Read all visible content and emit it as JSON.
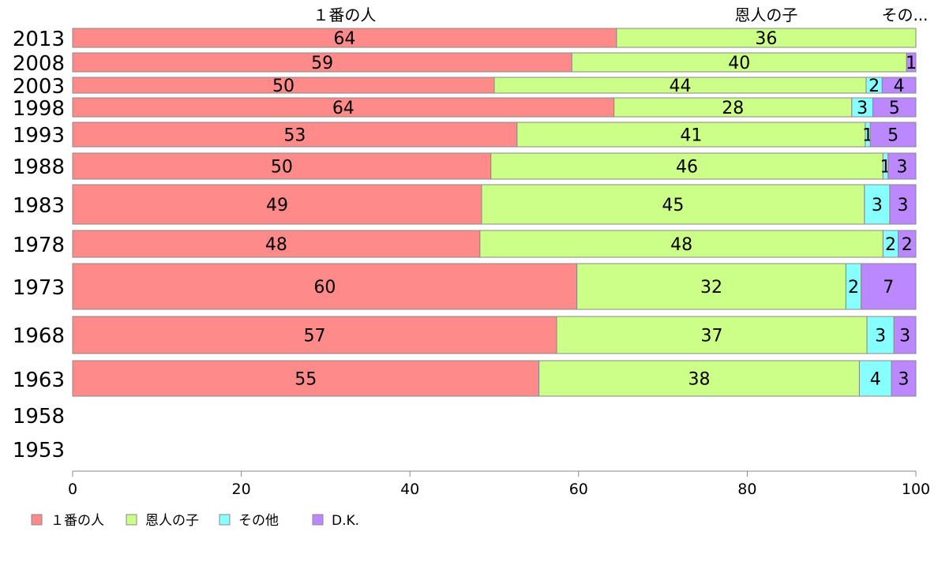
{
  "chart_data": {
    "type": "bar",
    "orientation": "horizontal",
    "stacked": true,
    "categories": [
      "2013",
      "2008",
      "2003",
      "1998",
      "1993",
      "1988",
      "1983",
      "1978",
      "1973",
      "1968",
      "1963",
      "1958",
      "1953"
    ],
    "series": [
      {
        "name": "１番の人",
        "color": "#ff8a8a",
        "values": [
          64.5,
          59.2,
          50.0,
          64.2,
          52.7,
          49.6,
          48.5,
          48.3,
          59.8,
          57.4,
          55.3,
          null,
          null
        ],
        "labels": [
          "64",
          "59",
          "50",
          "64",
          "53",
          "50",
          "49",
          "48",
          "60",
          "57",
          "55",
          "",
          ""
        ]
      },
      {
        "name": "恩人の子",
        "color": "#ccff88",
        "values": [
          35.5,
          39.7,
          44.1,
          28.2,
          41.3,
          46.5,
          45.4,
          47.8,
          31.9,
          36.8,
          38.0,
          null,
          null
        ],
        "labels": [
          "36",
          "40",
          "44",
          "28",
          "41",
          "46",
          "45",
          "48",
          "32",
          "37",
          "38",
          "",
          ""
        ]
      },
      {
        "name": "その他",
        "color": "#88ffff",
        "values": [
          0.0,
          0.0,
          1.9,
          2.5,
          0.6,
          0.6,
          3.0,
          1.8,
          1.8,
          3.2,
          3.8,
          null,
          null
        ],
        "labels": [
          "",
          "",
          "2",
          "3",
          "1",
          "1",
          "3",
          "2",
          "2",
          "3",
          "4",
          "",
          ""
        ]
      },
      {
        "name": "D.K.",
        "color": "#bb88ff",
        "values": [
          0.0,
          1.1,
          4.0,
          5.1,
          5.4,
          3.3,
          3.1,
          2.1,
          6.5,
          2.6,
          2.9,
          null,
          null
        ],
        "labels": [
          "",
          "1",
          "4",
          "5",
          "5",
          "3",
          "3",
          "2",
          "7",
          "3",
          "3",
          "",
          ""
        ]
      }
    ],
    "top_labels": [
      "１番の人",
      "恩人の子",
      "その..."
    ],
    "xlim": [
      0,
      100
    ],
    "x_ticks": [
      "0",
      "20",
      "40",
      "60",
      "80",
      "100"
    ],
    "legend_position": "bottom-left",
    "grid": false
  }
}
